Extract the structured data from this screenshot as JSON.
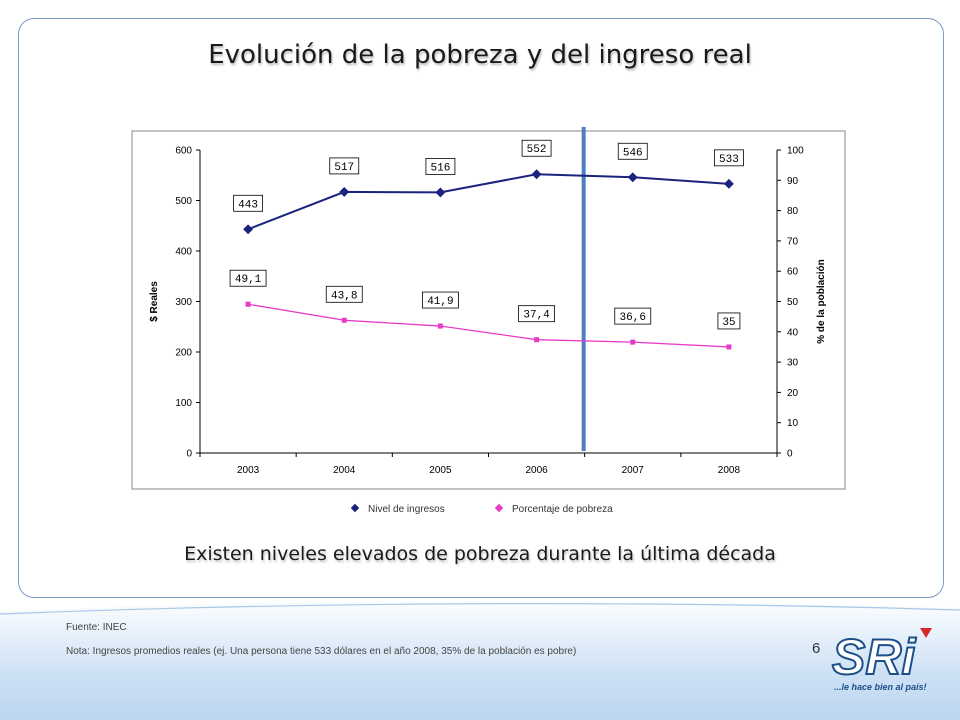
{
  "slide": {
    "title": "Evolución de la pobreza y del ingreso real",
    "subtitle": "Existen niveles elevados de pobreza durante la última década",
    "source": "Fuente: INEC",
    "note": "Nota: Ingresos promedios reales (ej. Una persona tiene 533 dólares en el año 2008, 35% de la población es pobre)",
    "page_number": "6",
    "logo_text": "SRi",
    "tagline": "...le hace bien al país!"
  },
  "chart_data": {
    "type": "line",
    "categories": [
      "2003",
      "2004",
      "2005",
      "2006",
      "2007",
      "2008"
    ],
    "series": [
      {
        "name": "Nivel de ingresos",
        "axis": "left",
        "color": "#1a237e",
        "values": [
          443,
          517,
          516,
          552,
          546,
          533
        ],
        "labels": [
          "443",
          "517",
          "516",
          "552",
          "546",
          "533"
        ]
      },
      {
        "name": "Porcentaje de pobreza",
        "axis": "right",
        "color": "#e83ac8",
        "values": [
          49.1,
          43.8,
          41.9,
          37.4,
          36.6,
          35
        ],
        "labels": [
          "49,1",
          "43,8",
          "41,9",
          "37,4",
          "36,6",
          "35"
        ]
      }
    ],
    "ylabel_left": "$ Reales",
    "ylabel_right": "% de la población",
    "ylim_left": [
      0,
      600
    ],
    "yticks_left": [
      0,
      100,
      200,
      300,
      400,
      500,
      600
    ],
    "ylim_right": [
      0,
      100
    ],
    "yticks_right": [
      0,
      10,
      20,
      30,
      40,
      50,
      60,
      70,
      80,
      90,
      100
    ],
    "grid": false,
    "legend": "bottom",
    "annotation_line": {
      "between": [
        "2006",
        "2007"
      ],
      "color": "#4f7fc0"
    }
  }
}
